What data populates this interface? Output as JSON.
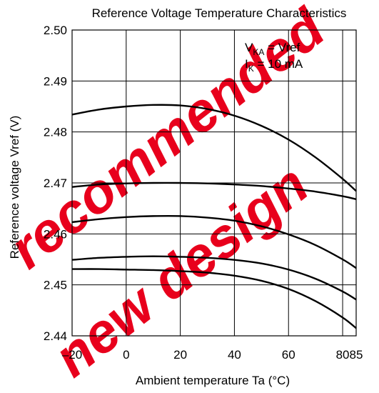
{
  "chart_data": {
    "type": "line",
    "title": "Reference Voltage Temperature Characteristics",
    "xlabel": "Ambient temperature  Ta  (°C)",
    "ylabel": "Reference voltage  Vref  (V)",
    "xlim": [
      -20,
      85
    ],
    "ylim": [
      2.44,
      2.5
    ],
    "x_ticks": [
      -20,
      0,
      20,
      40,
      60,
      80,
      85
    ],
    "x_tick_labels": [
      "–20",
      "0",
      "20",
      "40",
      "60",
      "80",
      "85"
    ],
    "y_ticks": [
      2.44,
      2.45,
      2.46,
      2.47,
      2.48,
      2.49,
      2.5
    ],
    "y_tick_labels": [
      "2.44",
      "2.45",
      "2.46",
      "2.47",
      "2.48",
      "2.49",
      "2.50"
    ],
    "grid": true,
    "conditions": {
      "line1": {
        "main": "V",
        "sub": "KA",
        "rest": " = Vref"
      },
      "line2": {
        "main": "I",
        "sub": "K",
        "rest": " = 10 mA"
      }
    },
    "series": [
      {
        "x": [
          -20,
          -10,
          0,
          10,
          20,
          30,
          40,
          50,
          60,
          70,
          80,
          85
        ],
        "y": [
          2.4834,
          2.4844,
          2.485,
          2.4853,
          2.4852,
          2.4845,
          2.4832,
          2.4812,
          2.4785,
          2.475,
          2.4708,
          2.4684
        ]
      },
      {
        "x": [
          -20,
          -10,
          0,
          10,
          20,
          30,
          40,
          50,
          60,
          70,
          80,
          85
        ],
        "y": [
          2.4692,
          2.4697,
          2.4699,
          2.47,
          2.47,
          2.4699,
          2.4697,
          2.4694,
          2.4689,
          2.4683,
          2.4674,
          2.4668
        ]
      },
      {
        "x": [
          -20,
          -10,
          0,
          10,
          20,
          30,
          40,
          50,
          60,
          70,
          80,
          85
        ],
        "y": [
          2.4623,
          2.4629,
          2.4633,
          2.4635,
          2.4635,
          2.4632,
          2.4626,
          2.4615,
          2.4599,
          2.4578,
          2.455,
          2.4533
        ]
      },
      {
        "x": [
          -20,
          -10,
          0,
          10,
          20,
          30,
          40,
          50,
          60,
          70,
          80,
          85
        ],
        "y": [
          2.4549,
          2.4553,
          2.4555,
          2.4556,
          2.4555,
          2.4553,
          2.4549,
          2.4542,
          2.453,
          2.4512,
          2.4487,
          2.4471
        ]
      },
      {
        "x": [
          -20,
          -10,
          0,
          10,
          20,
          30,
          40,
          50,
          60,
          70,
          80,
          85
        ],
        "y": [
          2.4531,
          2.4531,
          2.453,
          2.4529,
          2.4527,
          2.4524,
          2.4518,
          2.4508,
          2.4492,
          2.4468,
          2.4436,
          2.4415
        ]
      }
    ]
  },
  "watermark": {
    "text_1": "recommended",
    "text_2": "new design",
    "color": "#e8001c"
  }
}
